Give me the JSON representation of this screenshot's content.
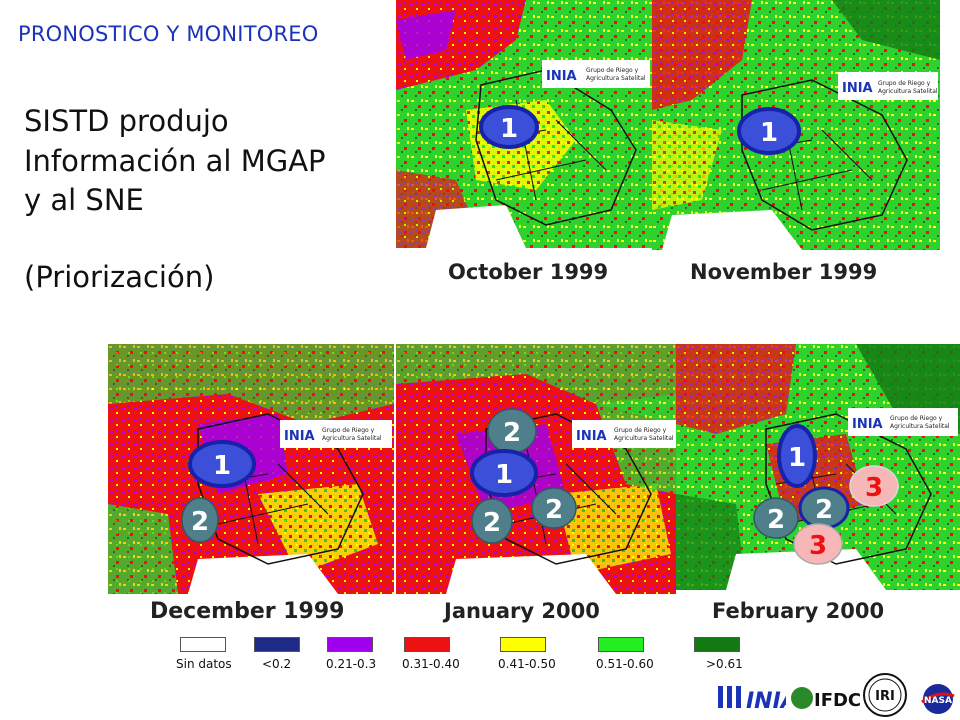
{
  "header": {
    "title": "PRONOSTICO Y MONITOREO"
  },
  "text": {
    "line1": "SISTD produjo",
    "line2": "Información al MGAP",
    "line3": "y al SNE",
    "line4": "(Priorización)"
  },
  "maps": [
    {
      "caption": "October 1999",
      "logo_text_1": "Grupo de Riego y",
      "logo_text_2": "Agricultura Satelital",
      "markers": [
        {
          "label": "1",
          "type": "priority-1"
        }
      ]
    },
    {
      "caption": "November 1999",
      "logo_text_1": "Grupo de Riego y",
      "logo_text_2": "Agricultura Satelital",
      "markers": [
        {
          "label": "1",
          "type": "priority-1"
        }
      ]
    },
    {
      "caption": "December 1999",
      "logo_text_1": "Grupo de Riego y",
      "logo_text_2": "Agricultura Satelital",
      "markers": [
        {
          "label": "1",
          "type": "priority-1"
        },
        {
          "label": "2",
          "type": "priority-2"
        }
      ]
    },
    {
      "caption": "January 2000",
      "logo_text_1": "Grupo de Riego y",
      "logo_text_2": "Agricultura Satelital",
      "markers": [
        {
          "label": "2",
          "type": "priority-2"
        },
        {
          "label": "1",
          "type": "priority-1"
        },
        {
          "label": "2",
          "type": "priority-2"
        },
        {
          "label": "2",
          "type": "priority-2"
        }
      ]
    },
    {
      "caption": "February 2000",
      "logo_text_1": "Grupo de Riego y",
      "logo_text_2": "Agricultura Satelital",
      "markers": [
        {
          "label": "1",
          "type": "priority-1"
        },
        {
          "label": "3",
          "type": "priority-3"
        },
        {
          "label": "2",
          "type": "priority-2"
        },
        {
          "label": "2",
          "type": "priority-2"
        },
        {
          "label": "3",
          "type": "priority-3"
        }
      ]
    }
  ],
  "legend": [
    {
      "label": "Sin datos",
      "color": "#ffffff"
    },
    {
      "label": "<0.2",
      "color": "#1f2a86"
    },
    {
      "label": "0.21-0.3",
      "color": "#a000ee"
    },
    {
      "label": "0.31-0.40",
      "color": "#ee1111"
    },
    {
      "label": "0.41-0.50",
      "color": "#ffff00"
    },
    {
      "label": "0.51-0.60",
      "color": "#22ee22"
    },
    {
      "label": ">0.61",
      "color": "#137a13"
    }
  ],
  "footer_logos": [
    {
      "name": "inia-logo-footer",
      "text": "INIA"
    },
    {
      "name": "ifdc-logo",
      "text": "IFDC"
    },
    {
      "name": "iri-logo",
      "text": "IRI"
    },
    {
      "name": "nasa-logo",
      "text": "NASA"
    }
  ],
  "colors": {
    "header": "#1a33b8",
    "marker_1_fill": "#3b4fd8",
    "marker_1_stroke": "#1722a8",
    "marker_2_fill": "#4f7f8a",
    "marker_3_fill": "#f5b7b7",
    "marker_3_text": "#ee1111"
  }
}
